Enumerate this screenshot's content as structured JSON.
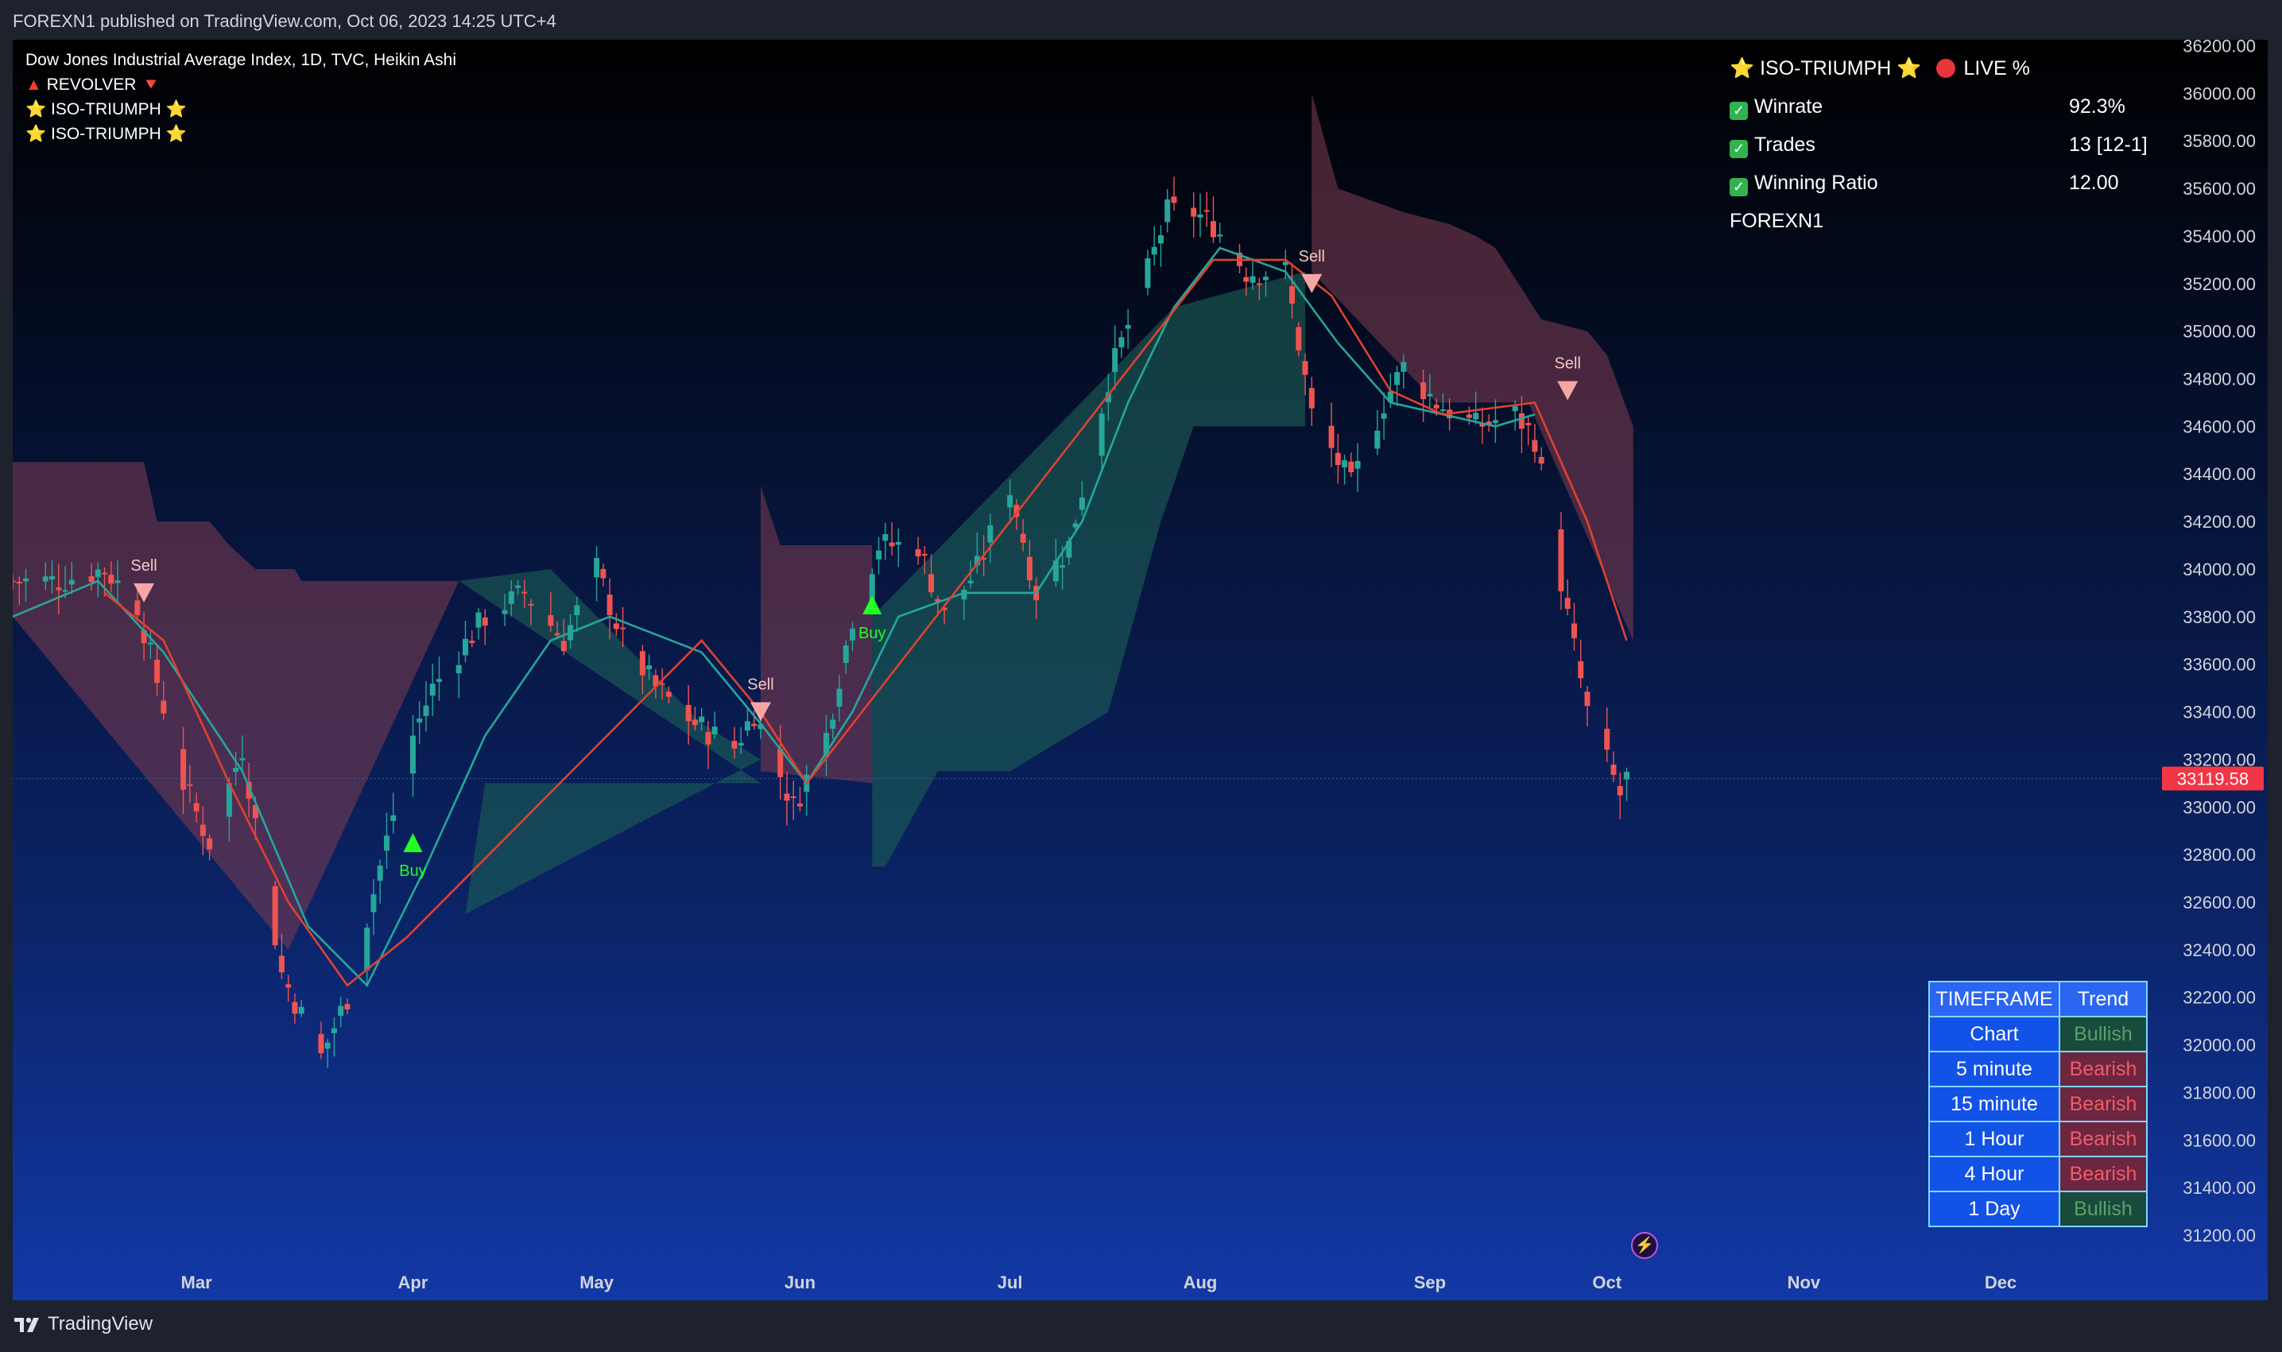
{
  "header": {
    "text": "FOREXN1 published on TradingView.com, Oct 06, 2023 14:25 UTC+4"
  },
  "footer": {
    "brand": "TradingView",
    "logo_icon": "tradingview-logo-icon"
  },
  "legend": {
    "title": "Dow Jones Industrial Average Index, 1D, TVC, Heikin Ashi",
    "indicators": [
      {
        "name": "REVOLVER",
        "left_glyph": "▲",
        "right_glyph": "🔻"
      },
      {
        "name": "ISO-TRIUMPH",
        "left_glyph": "⭐",
        "right_glyph": "⭐"
      },
      {
        "name": "ISO-TRIUMPH",
        "left_glyph": "⭐",
        "right_glyph": "⭐"
      }
    ]
  },
  "stats": {
    "title": "ISO-TRIUMPH",
    "live_label": "LIVE %",
    "rows": [
      {
        "label": "Winrate",
        "value": "92.3%"
      },
      {
        "label": "Trades",
        "value": "13 [12-1]"
      },
      {
        "label": "Winning Ratio",
        "value": "12.00"
      }
    ],
    "author": "FOREXN1"
  },
  "timeframe_table": {
    "headers": [
      "TIMEFRAME",
      "Trend"
    ],
    "rows": [
      {
        "timeframe": "Chart",
        "trend": "Bullish"
      },
      {
        "timeframe": "5 minute",
        "trend": "Bearish"
      },
      {
        "timeframe": "15 minute",
        "trend": "Bearish"
      },
      {
        "timeframe": "1 Hour",
        "trend": "Bearish"
      },
      {
        "timeframe": "4 Hour",
        "trend": "Bearish"
      },
      {
        "timeframe": "1 Day",
        "trend": "Bullish"
      }
    ]
  },
  "colors": {
    "bull_candle": "#26a69a",
    "bear_candle": "#ef5350",
    "fast_ma": "#26a69a",
    "slow_ma": "#e0412f",
    "bull_cloud": "#1b5e55",
    "bear_cloud": "#7a3a4f",
    "price_label_bg": "#f23645",
    "buy_marker": "#22ff22",
    "sell_marker": "#f7a6a6"
  },
  "chart_data": {
    "type": "candlestick",
    "symbol": "Dow Jones Industrial Average Index",
    "interval": "1D",
    "style": "Heikin Ashi",
    "y_axis": {
      "position": "right",
      "range": [
        31050,
        36300
      ],
      "ticks": [
        31200,
        31400,
        31600,
        31800,
        32000,
        32200,
        32400,
        32600,
        32800,
        33000,
        33200,
        33400,
        33600,
        33800,
        34000,
        34200,
        34400,
        34600,
        34800,
        35000,
        35200,
        35400,
        35600,
        35800,
        36000,
        36200
      ],
      "tick_labels": [
        "31200.00",
        "31400.00",
        "31600.00",
        "31800.00",
        "32000.00",
        "32200.00",
        "32400.00",
        "32600.00",
        "32800.00",
        "33000.00",
        "33200.00",
        "33400.00",
        "33600.00",
        "33800.00",
        "34000.00",
        "34200.00",
        "34400.00",
        "34600.00",
        "34800.00",
        "35000.00",
        "35200.00",
        "35400.00",
        "35600.00",
        "35800.00",
        "36000.00",
        "36200.00"
      ]
    },
    "x_axis": {
      "range": [
        "2023-02-01",
        "2023-12-31"
      ],
      "ticks": [
        {
          "label": "Mar",
          "date": "2023-03-01"
        },
        {
          "label": "Apr",
          "date": "2023-04-03"
        },
        {
          "label": "May",
          "date": "2023-05-01"
        },
        {
          "label": "Jun",
          "date": "2023-06-01"
        },
        {
          "label": "Jul",
          "date": "2023-07-03"
        },
        {
          "label": "Aug",
          "date": "2023-08-01"
        },
        {
          "label": "Sep",
          "date": "2023-09-05"
        },
        {
          "label": "Oct",
          "date": "2023-10-02"
        },
        {
          "label": "Nov",
          "date": "2023-11-01"
        },
        {
          "label": "Dec",
          "date": "2023-12-01"
        }
      ]
    },
    "last_price": {
      "value": 33119.58,
      "label": "33119.58"
    },
    "grid": false,
    "series": [
      {
        "name": "Heikin Ashi price path",
        "kind": "ohlc_close_path",
        "points": [
          [
            "2023-02-01",
            33950
          ],
          [
            "2023-02-08",
            33950
          ],
          [
            "2023-02-15",
            34000
          ],
          [
            "2023-02-20",
            33850
          ],
          [
            "2023-02-27",
            33100
          ],
          [
            "2023-03-03",
            32850
          ],
          [
            "2023-03-08",
            33250
          ],
          [
            "2023-03-14",
            32300
          ],
          [
            "2023-03-20",
            31950
          ],
          [
            "2023-03-24",
            32200
          ],
          [
            "2023-03-29",
            32750
          ],
          [
            "2023-04-03",
            33300
          ],
          [
            "2023-04-06",
            33500
          ],
          [
            "2023-04-14",
            33800
          ],
          [
            "2023-04-20",
            33900
          ],
          [
            "2023-04-26",
            33700
          ],
          [
            "2023-05-01",
            34000
          ],
          [
            "2023-05-05",
            33700
          ],
          [
            "2023-05-10",
            33500
          ],
          [
            "2023-05-16",
            33350
          ],
          [
            "2023-05-22",
            33250
          ],
          [
            "2023-05-25",
            33400
          ],
          [
            "2023-05-31",
            33000
          ],
          [
            "2023-06-05",
            33300
          ],
          [
            "2023-06-09",
            33800
          ],
          [
            "2023-06-13",
            34100
          ],
          [
            "2023-06-19",
            34100
          ],
          [
            "2023-06-23",
            33800
          ],
          [
            "2023-06-28",
            34000
          ],
          [
            "2023-07-03",
            34350
          ],
          [
            "2023-07-07",
            33900
          ],
          [
            "2023-07-12",
            34100
          ],
          [
            "2023-07-18",
            34800
          ],
          [
            "2023-07-24",
            35250
          ],
          [
            "2023-07-27",
            35500
          ],
          [
            "2023-07-31",
            35500
          ],
          [
            "2023-08-03",
            35450
          ],
          [
            "2023-08-08",
            35250
          ],
          [
            "2023-08-14",
            35250
          ],
          [
            "2023-08-18",
            34650
          ],
          [
            "2023-08-24",
            34350
          ],
          [
            "2023-08-29",
            34700
          ],
          [
            "2023-09-01",
            34850
          ],
          [
            "2023-09-06",
            34700
          ],
          [
            "2023-09-12",
            34600
          ],
          [
            "2023-09-18",
            34650
          ],
          [
            "2023-09-21",
            34550
          ],
          [
            "2023-09-26",
            33800
          ],
          [
            "2023-09-29",
            33400
          ],
          [
            "2023-10-04",
            33050
          ],
          [
            "2023-10-05",
            33119.58
          ]
        ]
      },
      {
        "name": "fast moving average",
        "kind": "line",
        "points": [
          [
            "2023-02-01",
            33800
          ],
          [
            "2023-02-14",
            33950
          ],
          [
            "2023-02-24",
            33650
          ],
          [
            "2023-03-08",
            33150
          ],
          [
            "2023-03-18",
            32500
          ],
          [
            "2023-03-27",
            32250
          ],
          [
            "2023-04-05",
            32750
          ],
          [
            "2023-04-14",
            33300
          ],
          [
            "2023-04-24",
            33700
          ],
          [
            "2023-05-03",
            33800
          ],
          [
            "2023-05-17",
            33650
          ],
          [
            "2023-05-26",
            33350
          ],
          [
            "2023-06-02",
            33100
          ],
          [
            "2023-06-09",
            33400
          ],
          [
            "2023-06-16",
            33800
          ],
          [
            "2023-06-26",
            33900
          ],
          [
            "2023-07-07",
            33900
          ],
          [
            "2023-07-14",
            34200
          ],
          [
            "2023-07-21",
            34700
          ],
          [
            "2023-07-28",
            35100
          ],
          [
            "2023-08-04",
            35350
          ],
          [
            "2023-08-14",
            35250
          ],
          [
            "2023-08-22",
            34950
          ],
          [
            "2023-08-30",
            34700
          ],
          [
            "2023-09-07",
            34650
          ],
          [
            "2023-09-15",
            34600
          ],
          [
            "2023-09-21",
            34650
          ]
        ]
      },
      {
        "name": "slow moving average",
        "kind": "line",
        "points": [
          [
            "2023-02-15",
            33900
          ],
          [
            "2023-02-24",
            33700
          ],
          [
            "2023-03-06",
            33100
          ],
          [
            "2023-03-15",
            32600
          ],
          [
            "2023-03-24",
            32250
          ],
          [
            "2023-04-02",
            32450
          ],
          [
            "2023-05-17",
            33700
          ],
          [
            "2023-05-26",
            33400
          ],
          [
            "2023-06-02",
            33100
          ],
          [
            "2023-08-03",
            35300
          ],
          [
            "2023-08-14",
            35300
          ],
          [
            "2023-08-21",
            35150
          ],
          [
            "2023-08-30",
            34750
          ],
          [
            "2023-09-07",
            34650
          ],
          [
            "2023-09-21",
            34700
          ],
          [
            "2023-09-29",
            34200
          ],
          [
            "2023-10-05",
            33700
          ]
        ]
      }
    ],
    "clouds": [
      {
        "trend": "bearish",
        "upper": [
          [
            "2023-02-01",
            34450
          ],
          [
            "2023-02-21",
            34450
          ],
          [
            "2023-02-23",
            34200
          ],
          [
            "2023-03-03",
            34200
          ],
          [
            "2023-03-06",
            34100
          ],
          [
            "2023-03-10",
            34000
          ],
          [
            "2023-03-16",
            34000
          ],
          [
            "2023-03-17",
            33950
          ],
          [
            "2023-04-10",
            33950
          ]
        ],
        "lower": [
          [
            "2023-04-10",
            33950
          ],
          [
            "2023-03-15",
            32400
          ],
          [
            "2023-02-01",
            33800
          ]
        ]
      },
      {
        "trend": "bullish",
        "upper": [
          [
            "2023-04-10",
            33950
          ],
          [
            "2023-04-24",
            34000
          ],
          [
            "2023-05-17",
            33350
          ],
          [
            "2023-05-26",
            33200
          ]
        ],
        "lower": [
          [
            "2023-04-11",
            32550
          ],
          [
            "2023-04-14",
            33100
          ],
          [
            "2023-05-26",
            33100
          ]
        ]
      },
      {
        "trend": "bearish",
        "upper": [
          [
            "2023-05-26",
            34350
          ],
          [
            "2023-05-29",
            34100
          ],
          [
            "2023-06-12",
            34100
          ]
        ],
        "lower": [
          [
            "2023-06-12",
            33100
          ],
          [
            "2023-05-26",
            33150
          ]
        ]
      },
      {
        "trend": "bullish",
        "upper": [
          [
            "2023-06-12",
            33800
          ],
          [
            "2023-07-28",
            35100
          ],
          [
            "2023-08-17",
            35250
          ]
        ],
        "lower": [
          [
            "2023-08-17",
            34600
          ],
          [
            "2023-07-31",
            34600
          ],
          [
            "2023-07-26",
            34200
          ],
          [
            "2023-07-18",
            33400
          ],
          [
            "2023-07-03",
            33150
          ],
          [
            "2023-06-22",
            33150
          ],
          [
            "2023-06-14",
            32750
          ],
          [
            "2023-06-12",
            32750
          ]
        ]
      },
      {
        "trend": "bearish",
        "upper": [
          [
            "2023-08-18",
            36000
          ],
          [
            "2023-08-22",
            35600
          ],
          [
            "2023-09-01",
            35500
          ],
          [
            "2023-09-08",
            35450
          ],
          [
            "2023-09-12",
            35400
          ],
          [
            "2023-09-15",
            35350
          ],
          [
            "2023-09-22",
            35050
          ],
          [
            "2023-09-29",
            35000
          ],
          [
            "2023-10-02",
            34900
          ],
          [
            "2023-10-06",
            34600
          ],
          [
            "2023-10-06",
            33700
          ]
        ],
        "lower": [
          [
            "2023-10-06",
            33700
          ],
          [
            "2023-09-28",
            34200
          ],
          [
            "2023-09-20",
            34700
          ],
          [
            "2023-09-06",
            34700
          ],
          [
            "2023-08-18",
            35250
          ]
        ]
      }
    ],
    "signals": [
      {
        "type": "Sell",
        "label": "Sell",
        "date": "2023-02-21",
        "price": 33900
      },
      {
        "type": "Buy",
        "label": "Buy",
        "date": "2023-04-03",
        "price": 32850
      },
      {
        "type": "Sell",
        "label": "Sell",
        "date": "2023-05-26",
        "price": 33400
      },
      {
        "type": "Buy",
        "label": "Buy",
        "date": "2023-06-12",
        "price": 33850
      },
      {
        "type": "Sell",
        "label": "Sell",
        "date": "2023-08-18",
        "price": 35200
      },
      {
        "type": "Sell",
        "label": "Sell",
        "date": "2023-09-26",
        "price": 34750
      }
    ]
  }
}
